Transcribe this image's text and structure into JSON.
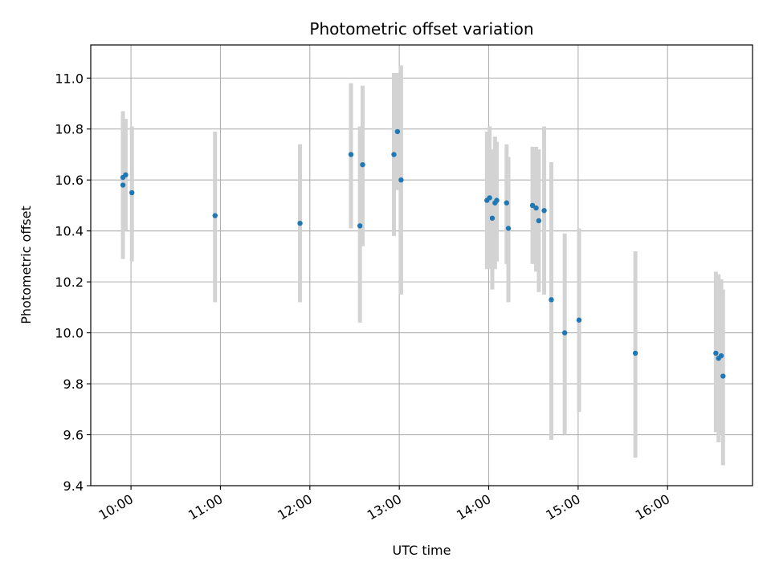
{
  "chart_data": {
    "type": "scatter",
    "title": "Photometric offset variation",
    "xlabel": "UTC time",
    "ylabel": "Photometric offset",
    "grid": true,
    "xlim_hours": [
      9.55,
      16.95
    ],
    "ylim": [
      9.4,
      11.13
    ],
    "xticks": [
      {
        "hour": 10,
        "label": "10:00"
      },
      {
        "hour": 11,
        "label": "11:00"
      },
      {
        "hour": 12,
        "label": "12:00"
      },
      {
        "hour": 13,
        "label": "13:00"
      },
      {
        "hour": 14,
        "label": "14:00"
      },
      {
        "hour": 15,
        "label": "15:00"
      },
      {
        "hour": 16,
        "label": "16:00"
      }
    ],
    "yticks": [
      {
        "value": 9.4,
        "label": "9.4"
      },
      {
        "value": 9.6,
        "label": "9.6"
      },
      {
        "value": 9.8,
        "label": "9.8"
      },
      {
        "value": 10.0,
        "label": "10.0"
      },
      {
        "value": 10.2,
        "label": "10.2"
      },
      {
        "value": 10.4,
        "label": "10.4"
      },
      {
        "value": 10.6,
        "label": "10.6"
      },
      {
        "value": 10.8,
        "label": "10.8"
      },
      {
        "value": 11.0,
        "label": "11.0"
      }
    ],
    "marker_color": "#1f77b4",
    "errorbar_color": "#d3d3d3",
    "points": [
      {
        "t": 9.91,
        "y": 10.58,
        "lo": 10.29,
        "hi": 10.87
      },
      {
        "t": 9.91,
        "y": 10.61,
        "lo": 10.4,
        "hi": 10.85
      },
      {
        "t": 9.94,
        "y": 10.62,
        "lo": 10.4,
        "hi": 10.84
      },
      {
        "t": 10.01,
        "y": 10.55,
        "lo": 10.28,
        "hi": 10.81
      },
      {
        "t": 10.94,
        "y": 10.46,
        "lo": 10.12,
        "hi": 10.79
      },
      {
        "t": 11.89,
        "y": 10.43,
        "lo": 10.12,
        "hi": 10.74
      },
      {
        "t": 12.46,
        "y": 10.7,
        "lo": 10.41,
        "hi": 10.98
      },
      {
        "t": 12.56,
        "y": 10.42,
        "lo": 10.04,
        "hi": 10.81
      },
      {
        "t": 12.59,
        "y": 10.66,
        "lo": 10.34,
        "hi": 10.97
      },
      {
        "t": 12.94,
        "y": 10.7,
        "lo": 10.38,
        "hi": 11.02
      },
      {
        "t": 12.98,
        "y": 10.79,
        "lo": 10.56,
        "hi": 11.02
      },
      {
        "t": 13.02,
        "y": 10.6,
        "lo": 10.15,
        "hi": 11.05
      },
      {
        "t": 13.98,
        "y": 10.52,
        "lo": 10.25,
        "hi": 10.79
      },
      {
        "t": 14.01,
        "y": 10.53,
        "lo": 10.25,
        "hi": 10.81
      },
      {
        "t": 14.04,
        "y": 10.45,
        "lo": 10.17,
        "hi": 10.72
      },
      {
        "t": 14.07,
        "y": 10.51,
        "lo": 10.25,
        "hi": 10.77
      },
      {
        "t": 14.09,
        "y": 10.52,
        "lo": 10.28,
        "hi": 10.75
      },
      {
        "t": 14.2,
        "y": 10.51,
        "lo": 10.27,
        "hi": 10.74
      },
      {
        "t": 14.22,
        "y": 10.41,
        "lo": 10.12,
        "hi": 10.69
      },
      {
        "t": 14.49,
        "y": 10.5,
        "lo": 10.27,
        "hi": 10.73
      },
      {
        "t": 14.53,
        "y": 10.49,
        "lo": 10.24,
        "hi": 10.73
      },
      {
        "t": 14.56,
        "y": 10.44,
        "lo": 10.16,
        "hi": 10.72
      },
      {
        "t": 14.62,
        "y": 10.48,
        "lo": 10.15,
        "hi": 10.81
      },
      {
        "t": 14.7,
        "y": 10.13,
        "lo": 9.58,
        "hi": 10.67
      },
      {
        "t": 14.85,
        "y": 10.0,
        "lo": 9.6,
        "hi": 10.39
      },
      {
        "t": 15.01,
        "y": 10.05,
        "lo": 9.69,
        "hi": 10.41
      },
      {
        "t": 15.64,
        "y": 9.92,
        "lo": 9.51,
        "hi": 10.32
      },
      {
        "t": 16.54,
        "y": 9.92,
        "lo": 9.61,
        "hi": 10.24
      },
      {
        "t": 16.57,
        "y": 9.9,
        "lo": 9.57,
        "hi": 10.23
      },
      {
        "t": 16.6,
        "y": 9.91,
        "lo": 9.6,
        "hi": 10.21
      },
      {
        "t": 16.62,
        "y": 9.83,
        "lo": 9.48,
        "hi": 10.17
      }
    ]
  }
}
